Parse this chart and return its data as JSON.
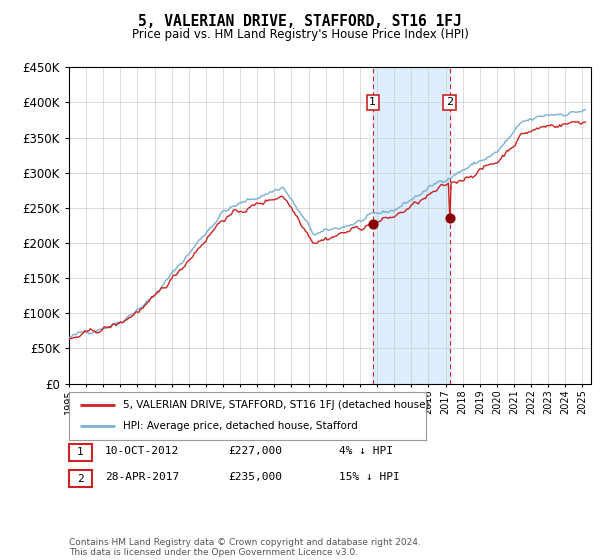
{
  "title": "5, VALERIAN DRIVE, STAFFORD, ST16 1FJ",
  "subtitle": "Price paid vs. HM Land Registry's House Price Index (HPI)",
  "legend_line1": "5, VALERIAN DRIVE, STAFFORD, ST16 1FJ (detached house)",
  "legend_line2": "HPI: Average price, detached house, Stafford",
  "purchase1_date": "10-OCT-2012",
  "purchase1_price": 227000,
  "purchase1_label": "£227,000",
  "purchase1_pct": "4% ↓ HPI",
  "purchase2_date": "28-APR-2017",
  "purchase2_price": 235000,
  "purchase2_label": "£235,000",
  "purchase2_pct": "15% ↓ HPI",
  "footer": "Contains HM Land Registry data © Crown copyright and database right 2024.\nThis data is licensed under the Open Government Licence v3.0.",
  "hpi_color": "#7bafd4",
  "price_color": "#cc2222",
  "marker_color": "#8b0000",
  "background_color": "#ffffff",
  "grid_color": "#cccccc",
  "highlight_color": "#ddeeff",
  "ylim": [
    0,
    450000
  ],
  "ytick_step": 50000,
  "xmin": 1995.0,
  "xmax": 2025.5
}
